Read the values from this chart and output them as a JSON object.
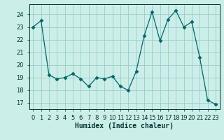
{
  "x": [
    0,
    1,
    2,
    3,
    4,
    5,
    6,
    7,
    8,
    9,
    10,
    11,
    12,
    13,
    14,
    15,
    16,
    17,
    18,
    19,
    20,
    21,
    22,
    23
  ],
  "y": [
    23.0,
    23.5,
    19.2,
    18.9,
    19.0,
    19.3,
    18.9,
    18.3,
    19.0,
    18.9,
    19.1,
    18.3,
    18.0,
    19.5,
    22.3,
    24.2,
    21.9,
    23.6,
    24.3,
    23.0,
    23.4,
    20.6,
    17.2,
    16.9
  ],
  "xlabel": "Humidex (Indice chaleur)",
  "ylim": [
    16.5,
    24.8
  ],
  "xlim": [
    -0.5,
    23.5
  ],
  "yticks": [
    17,
    18,
    19,
    20,
    21,
    22,
    23,
    24
  ],
  "xticks": [
    0,
    1,
    2,
    3,
    4,
    5,
    6,
    7,
    8,
    9,
    10,
    11,
    12,
    13,
    14,
    15,
    16,
    17,
    18,
    19,
    20,
    21,
    22,
    23
  ],
  "line_color": "#006666",
  "marker": "D",
  "marker_size": 2.5,
  "bg_color": "#cceee8",
  "grid_color": "#99cccc",
  "fig_bg": "#cceee8",
  "tick_color": "#003333",
  "tick_fontsize": 6,
  "xlabel_fontsize": 7
}
